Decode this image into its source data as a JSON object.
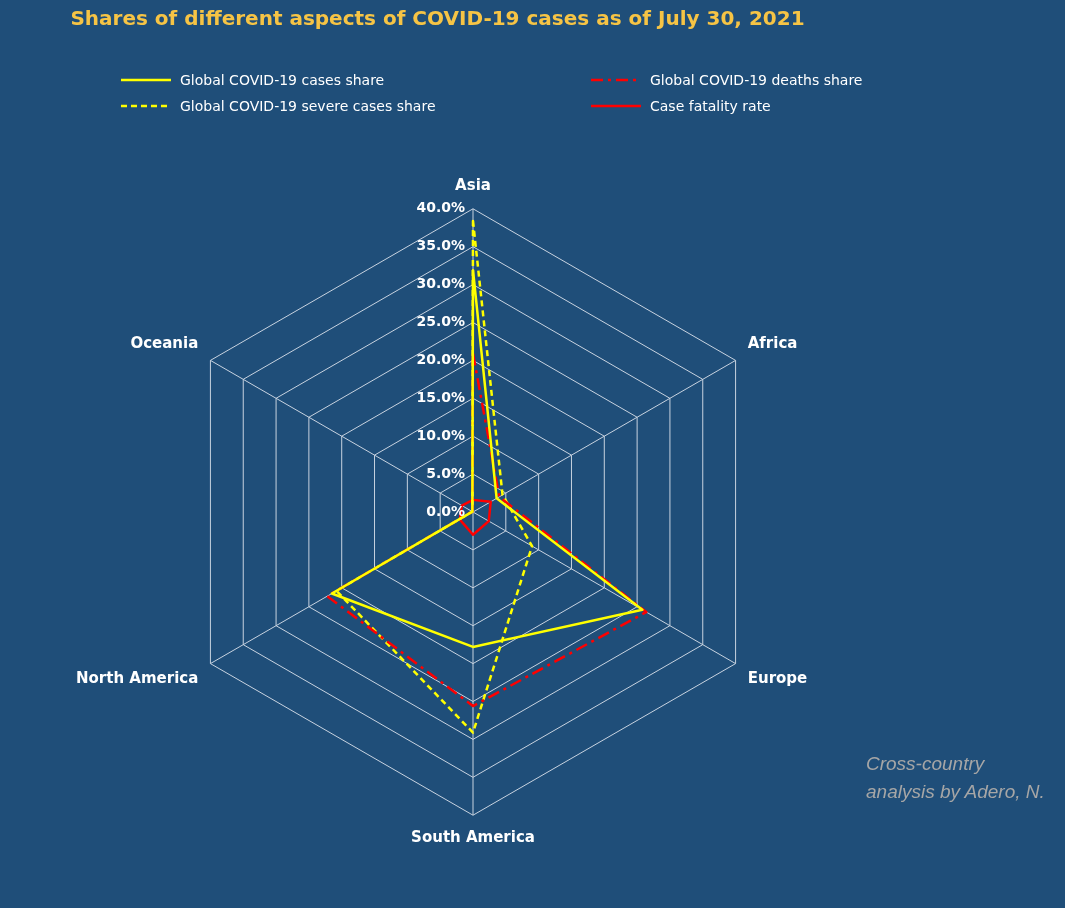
{
  "chart_data": {
    "type": "radar",
    "title": "Shares of different aspects of COVID-19 cases as of July 30, 2021",
    "categories": [
      "Asia",
      "Africa",
      "Europe",
      "South America",
      "North America",
      "Oceania"
    ],
    "series": [
      {
        "name": "Global COVID-19 cases share",
        "color": "#ffff00",
        "line_style": "solid",
        "values": [
          31.9,
          3.6,
          25.8,
          17.8,
          21.5,
          0.1
        ]
      },
      {
        "name": "Global COVID-19 deaths share",
        "color": "#ff0000",
        "line_style": "dashdot",
        "values": [
          20.9,
          4.0,
          26.4,
          25.6,
          22.2,
          0.1
        ]
      },
      {
        "name": "Global COVID-19 severe cases share",
        "color": "#ffff00",
        "line_style": "dashed",
        "values": [
          38.4,
          4.5,
          9.0,
          29.1,
          20.8,
          0.1
        ]
      },
      {
        "name": "Case fatality rate",
        "color": "#ff0000",
        "line_style": "solid",
        "values": [
          1.6,
          2.7,
          2.4,
          3.0,
          2.0,
          1.7
        ]
      }
    ],
    "ylim": [
      0,
      40
    ],
    "yticks": [
      {
        "value": 0,
        "label": "0.0%"
      },
      {
        "value": 5,
        "label": "5.0%"
      },
      {
        "value": 10,
        "label": "10.0%"
      },
      {
        "value": 15,
        "label": "15.0%"
      },
      {
        "value": 20,
        "label": "20.0%"
      },
      {
        "value": 25,
        "label": "25.0%"
      },
      {
        "value": 30,
        "label": "30.0%"
      },
      {
        "value": 35,
        "label": "35.0%"
      },
      {
        "value": 40,
        "label": "40.0%"
      }
    ],
    "grid": true,
    "legend": "top",
    "marker": "none",
    "annotations": [
      "Cross-country analysis by Adero, N."
    ]
  }
}
